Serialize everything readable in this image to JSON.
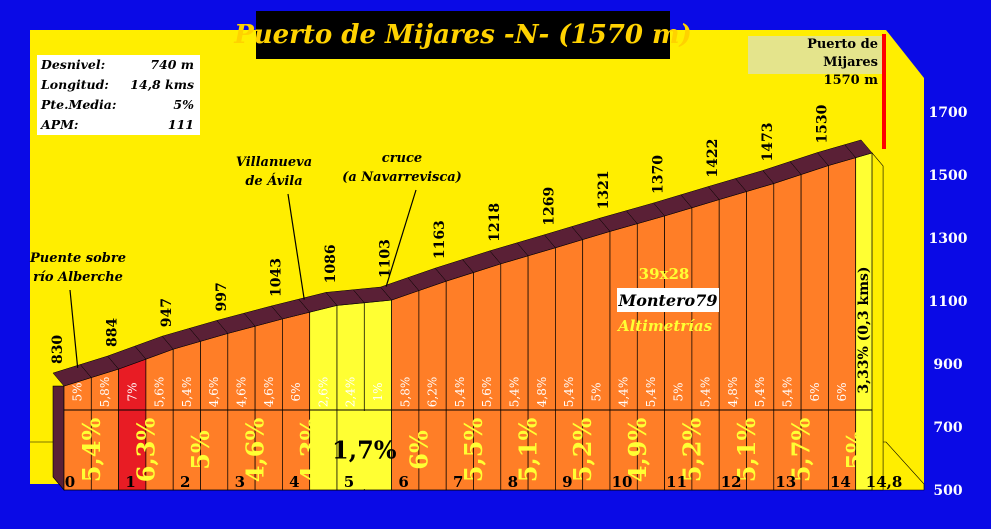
{
  "title": "Puerto de Mijares -N- (1570 m)",
  "stats": [
    {
      "label": "Desnivel:",
      "value": "740 m"
    },
    {
      "label": "Longitud:",
      "value": "14,8 kms"
    },
    {
      "label": "Pte.Media:",
      "value": "5%"
    },
    {
      "label": "APM:",
      "value": "111"
    }
  ],
  "summit_label": {
    "line1": "Puerto de Mijares",
    "line2": "1570 m"
  },
  "waypoints": [
    {
      "km": 0,
      "lines": [
        "Puente sobre",
        "río Alberche"
      ]
    },
    {
      "km": 4.3,
      "lines": [
        "Villanueva",
        "de Ávila"
      ]
    },
    {
      "km": 6,
      "lines": [
        "cruce",
        "(a Navarrevisca)"
      ]
    }
  ],
  "watermark": {
    "line1": "39x28",
    "line2": "Montero79",
    "line3": "Altimetrías"
  },
  "colors": {
    "background": "#0a0ae6",
    "panel": "#ffee00",
    "slope_orange": "#ff7e27",
    "slope_yellow": "#ffff33",
    "slope_red": "#e81c24",
    "road_top": "#5a2036"
  },
  "chart_data": {
    "type": "area",
    "title": "Puerto de Mijares -N- (1570 m)",
    "xlabel": "",
    "ylabel": "",
    "xlim": [
      0,
      14.8
    ],
    "ylim": [
      500,
      1700
    ],
    "y_ticks": [
      500,
      700,
      900,
      1100,
      1300,
      1500,
      1700
    ],
    "x_ticks": [
      "0",
      "1",
      "2",
      "3",
      "4",
      "5",
      "6",
      "7",
      "8",
      "9",
      "10",
      "11",
      "12",
      "13",
      "14",
      "14,8"
    ],
    "altitude_labels": [
      {
        "km": 0,
        "alt": 830,
        "label": "830"
      },
      {
        "km": 1,
        "alt": 884,
        "label": "884"
      },
      {
        "km": 2,
        "alt": 947,
        "label": "947"
      },
      {
        "km": 3,
        "alt": 997,
        "label": "997"
      },
      {
        "km": 4,
        "alt": 1043,
        "label": "1043"
      },
      {
        "km": 5,
        "alt": 1086,
        "label": "1086"
      },
      {
        "km": 6,
        "alt": 1103,
        "label": "1103"
      },
      {
        "km": 7,
        "alt": 1163,
        "label": "1163"
      },
      {
        "km": 8,
        "alt": 1218,
        "label": "1218"
      },
      {
        "km": 9,
        "alt": 1269,
        "label": "1269"
      },
      {
        "km": 10,
        "alt": 1321,
        "label": "1321"
      },
      {
        "km": 11,
        "alt": 1370,
        "label": "1370"
      },
      {
        "km": 12,
        "alt": 1422,
        "label": "1422"
      },
      {
        "km": 13,
        "alt": 1473,
        "label": "1473"
      },
      {
        "km": 14,
        "alt": 1530,
        "label": "1530"
      },
      {
        "km": 14.8,
        "alt": 1570,
        "label": ""
      }
    ],
    "segments": [
      {
        "from": 0,
        "to": 0.5,
        "grade": "5%"
      },
      {
        "from": 0.5,
        "to": 1,
        "grade": "5,8%"
      },
      {
        "from": 1,
        "to": 1.5,
        "grade": "7%"
      },
      {
        "from": 1.5,
        "to": 2,
        "grade": "5,6%"
      },
      {
        "from": 2,
        "to": 2.5,
        "grade": "5,4%"
      },
      {
        "from": 2.5,
        "to": 3,
        "grade": "4,6%"
      },
      {
        "from": 3,
        "to": 3.5,
        "grade": "4,6%"
      },
      {
        "from": 3.5,
        "to": 4,
        "grade": "4,6%"
      },
      {
        "from": 4,
        "to": 4.5,
        "grade": "6%"
      },
      {
        "from": 4.5,
        "to": 5,
        "grade": "2,6%"
      },
      {
        "from": 5,
        "to": 5.5,
        "grade": "2,4%"
      },
      {
        "from": 5.5,
        "to": 6,
        "grade": "1%"
      },
      {
        "from": 6,
        "to": 6.5,
        "grade": "5,8%"
      },
      {
        "from": 6.5,
        "to": 7,
        "grade": "6,2%"
      },
      {
        "from": 7,
        "to": 7.5,
        "grade": "5,4%"
      },
      {
        "from": 7.5,
        "to": 8,
        "grade": "5,6%"
      },
      {
        "from": 8,
        "to": 8.5,
        "grade": "5,4%"
      },
      {
        "from": 8.5,
        "to": 9,
        "grade": "4,8%"
      },
      {
        "from": 9,
        "to": 9.5,
        "grade": "5,4%"
      },
      {
        "from": 9.5,
        "to": 10,
        "grade": "5%"
      },
      {
        "from": 10,
        "to": 10.5,
        "grade": "4,4%"
      },
      {
        "from": 10.5,
        "to": 11,
        "grade": "5,4%"
      },
      {
        "from": 11,
        "to": 11.5,
        "grade": "5%"
      },
      {
        "from": 11.5,
        "to": 12,
        "grade": "5,4%"
      },
      {
        "from": 12,
        "to": 12.5,
        "grade": "4,8%"
      },
      {
        "from": 12.5,
        "to": 13,
        "grade": "5,4%"
      },
      {
        "from": 13,
        "to": 13.5,
        "grade": "5,4%"
      },
      {
        "from": 13.5,
        "to": 14,
        "grade": "6%"
      },
      {
        "from": 14,
        "to": 14.5,
        "grade": "6%"
      },
      {
        "from": 14.5,
        "to": 14.8,
        "grade": "3,33% (0,3 kms)"
      }
    ],
    "km_grades": [
      "5,4%",
      "6,3%",
      "5%",
      "4,6%",
      "4,3%",
      "1,7%",
      "6%",
      "5,5%",
      "5,1%",
      "5,2%",
      "4,9%",
      "5,2%",
      "5,1%",
      "5,7%",
      "5%"
    ]
  }
}
